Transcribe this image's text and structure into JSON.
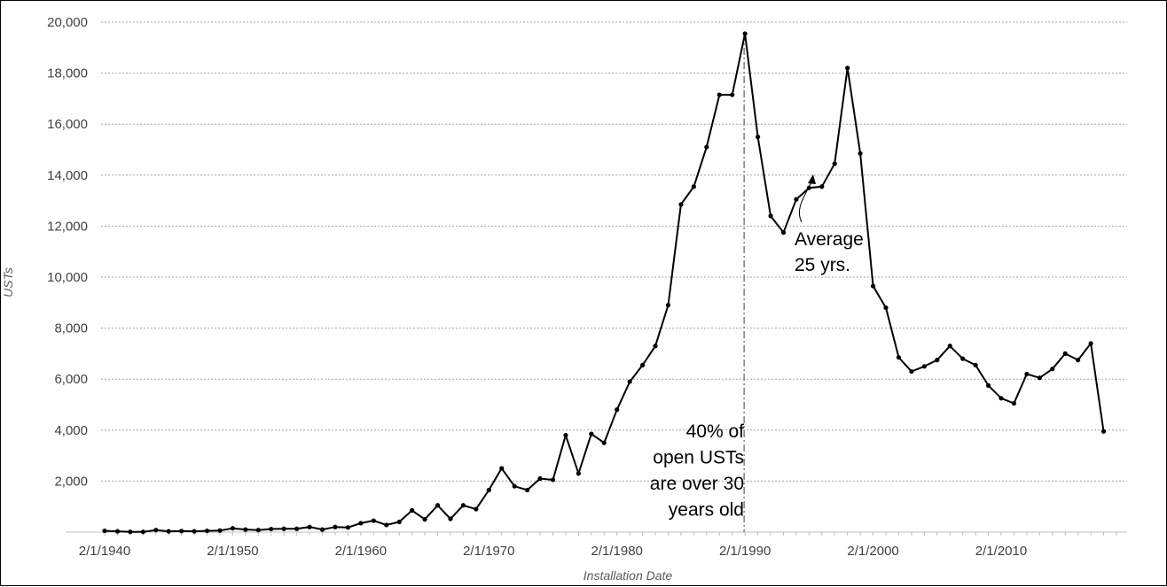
{
  "chart_data": {
    "type": "line",
    "xlabel": "Installation Date",
    "ylabel": "USTs",
    "xlim": [
      1940,
      2020
    ],
    "ylim": [
      0,
      20000
    ],
    "y_ticks": [
      0,
      2000,
      4000,
      6000,
      8000,
      10000,
      12000,
      14000,
      16000,
      18000,
      20000
    ],
    "y_tick_labels": [
      "",
      "2,000",
      "4,000",
      "6,000",
      "8,000",
      "10,000",
      "12,000",
      "14,000",
      "16,000",
      "18,000",
      "20,000"
    ],
    "x_ticks": [
      1940,
      1950,
      1960,
      1970,
      1980,
      1990,
      2000,
      2010
    ],
    "x_tick_labels": [
      "2/1/1940",
      "2/1/1950",
      "2/1/1960",
      "2/1/1970",
      "2/1/1980",
      "2/1/1990",
      "2/1/2000",
      "2/1/2010"
    ],
    "grid": true,
    "series": [
      {
        "x": [
          1940,
          1941,
          1942,
          1943,
          1944,
          1945,
          1946,
          1947,
          1948,
          1949,
          1950,
          1951,
          1952,
          1953,
          1954,
          1955,
          1956,
          1957,
          1958,
          1959,
          1960,
          1961,
          1962,
          1963,
          1964,
          1965,
          1966,
          1967,
          1968,
          1969,
          1970,
          1971,
          1972,
          1973,
          1974,
          1975,
          1976,
          1977,
          1978,
          1979,
          1980,
          1981,
          1982,
          1983,
          1984,
          1985,
          1986,
          1987,
          1988,
          1989,
          1990,
          1991,
          1992,
          1993,
          1994,
          1995,
          1996,
          1997,
          1998,
          1999,
          2000,
          2001,
          2002,
          2003,
          2004,
          2005,
          2006,
          2007,
          2008,
          2009,
          2010,
          2011,
          2012,
          2013,
          2014,
          2015,
          2016,
          2017,
          2018
        ],
        "values": [
          50,
          30,
          10,
          10,
          80,
          30,
          40,
          30,
          50,
          60,
          150,
          100,
          80,
          120,
          130,
          130,
          200,
          100,
          200,
          180,
          350,
          450,
          280,
          400,
          850,
          500,
          1050,
          520,
          1050,
          900,
          1650,
          2500,
          1800,
          1650,
          2100,
          2050,
          3800,
          2300,
          3850,
          3500,
          4800,
          5900,
          6550,
          7300,
          8900,
          12850,
          13550,
          15100,
          17150,
          17150,
          19550,
          15500,
          12400,
          11750,
          13050,
          13500,
          13550,
          14450,
          18200,
          14850,
          9650,
          8800,
          6850,
          6300,
          6500,
          6750,
          7300,
          6800,
          6550,
          5750,
          5250,
          5050,
          6200,
          6050,
          6400,
          7000,
          6750,
          7400,
          3950
        ]
      }
    ],
    "reference_line": {
      "x": 1990,
      "style": "dash-dot"
    },
    "annotations": [
      {
        "lines": [
          "40% of",
          "open USTs",
          "are over 30",
          "years old"
        ]
      },
      {
        "lines": [
          "Average",
          "25 yrs."
        ]
      }
    ]
  }
}
